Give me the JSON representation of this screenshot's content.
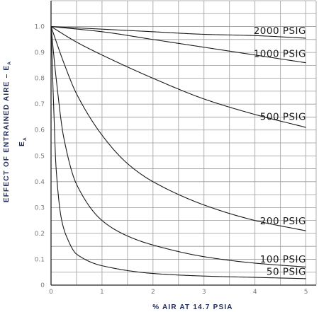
{
  "chart_data": {
    "type": "line",
    "xlabel": "% AIR AT 14.7 PSIA",
    "ylabel": "EFFECT OF ENTRAINED AIRE – E",
    "ylabel_sub": "A",
    "ysymbol": "E",
    "ysymbol_sub": "A",
    "xlim": [
      0,
      5.2
    ],
    "ylim": [
      0,
      1.1
    ],
    "x_ticks": [
      "0",
      "1",
      "2",
      "3",
      "4",
      "5"
    ],
    "y_ticks": [
      "0",
      "0.1",
      "0.2",
      "0.3",
      "0.4",
      "0.5",
      "0.6",
      "0.7",
      "0.8",
      "0.9",
      "1.0"
    ],
    "grid": true,
    "series": [
      {
        "name": "2000 PSIG",
        "x": [
          0,
          1,
          2,
          3,
          4,
          5
        ],
        "values": [
          1.0,
          0.99,
          0.98,
          0.97,
          0.965,
          0.955
        ]
      },
      {
        "name": "1000 PSIG",
        "x": [
          0,
          1,
          2,
          3,
          4,
          5
        ],
        "values": [
          1.0,
          0.98,
          0.95,
          0.92,
          0.89,
          0.86
        ]
      },
      {
        "name": "500 PSIG",
        "x": [
          0,
          0.5,
          1,
          2,
          3,
          4,
          5
        ],
        "values": [
          1.0,
          0.94,
          0.89,
          0.8,
          0.72,
          0.66,
          0.61
        ]
      },
      {
        "name": "200 PSIG",
        "x": [
          0,
          0.25,
          0.5,
          1,
          1.5,
          2,
          3,
          4,
          5
        ],
        "values": [
          1.0,
          0.86,
          0.74,
          0.58,
          0.47,
          0.4,
          0.31,
          0.25,
          0.21
        ]
      },
      {
        "name": "100 PSIG",
        "x": [
          0,
          0.1,
          0.25,
          0.5,
          1,
          1.5,
          2,
          3,
          4,
          5
        ],
        "values": [
          1.0,
          0.8,
          0.57,
          0.39,
          0.25,
          0.19,
          0.155,
          0.11,
          0.085,
          0.07
        ]
      },
      {
        "name": "50 PSIG",
        "x": [
          0,
          0.05,
          0.1,
          0.2,
          0.3,
          0.5,
          1,
          2,
          3,
          4,
          5
        ],
        "values": [
          1.0,
          0.7,
          0.45,
          0.26,
          0.19,
          0.12,
          0.075,
          0.045,
          0.035,
          0.03,
          0.025
        ]
      }
    ]
  }
}
